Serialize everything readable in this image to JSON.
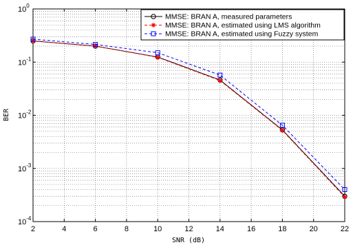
{
  "chart_data": {
    "type": "line",
    "title": "",
    "xlabel": "SNR (dB)",
    "ylabel": "BER",
    "xlim": [
      2,
      22
    ],
    "ylim": [
      0.0001,
      1
    ],
    "yscale": "log",
    "grid": true,
    "legend_position": "top-right",
    "x_ticks": [
      2,
      4,
      6,
      8,
      10,
      12,
      14,
      16,
      18,
      20,
      22
    ],
    "y_ticks": [
      {
        "base": "10",
        "exp": "0"
      },
      {
        "base": "10",
        "exp": "-1"
      },
      {
        "base": "10",
        "exp": "-2"
      },
      {
        "base": "10",
        "exp": "-3"
      },
      {
        "base": "10",
        "exp": "-4"
      }
    ],
    "x": [
      2,
      6,
      10,
      14,
      18,
      22
    ],
    "series": [
      {
        "name": "MMSE: BRAN A, measured parameters",
        "values": [
          0.25,
          0.2,
          0.125,
          0.046,
          0.0053,
          0.0003
        ],
        "color": "#000000",
        "line_style": "solid",
        "marker": "circle"
      },
      {
        "name": "MMSE: BRAN A, estimated using LMS algorithm",
        "values": [
          0.25,
          0.2,
          0.123,
          0.045,
          0.0052,
          0.00029
        ],
        "color": "#ff0000",
        "line_style": "dashed",
        "marker": "asterisk"
      },
      {
        "name": "MMSE: BRAN A, estimated using Fuzzy system",
        "values": [
          0.27,
          0.215,
          0.15,
          0.057,
          0.0065,
          0.0004
        ],
        "color": "#0000ff",
        "line_style": "dashed",
        "marker": "square"
      }
    ]
  }
}
